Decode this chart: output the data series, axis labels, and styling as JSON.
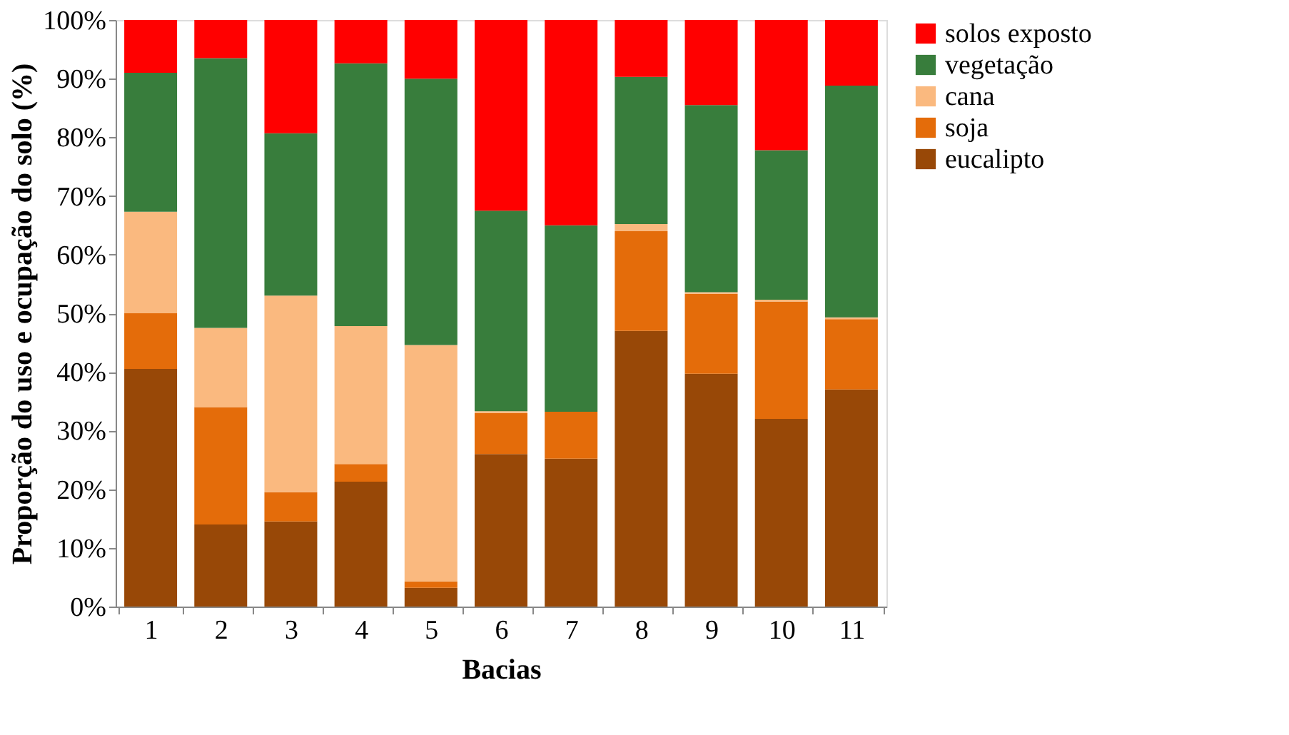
{
  "chart_data": {
    "type": "bar",
    "stacked": true,
    "xlabel": "Bacias",
    "ylabel": "Proporção do uso e ocupação do solo (%)",
    "categories": [
      "1",
      "2",
      "3",
      "4",
      "5",
      "6",
      "7",
      "8",
      "9",
      "10",
      "11"
    ],
    "series": [
      {
        "name": "eucalipto",
        "color": "#984807",
        "values": [
          40.5,
          14,
          14.5,
          21.3,
          3.2,
          26,
          25.2,
          47,
          39.7,
          32,
          37
        ]
      },
      {
        "name": "soja",
        "color": "#e46c0a",
        "values": [
          9.5,
          20,
          5,
          3,
          1.1,
          7,
          8,
          17,
          13.6,
          20,
          12
        ]
      },
      {
        "name": "cana",
        "color": "#fab97f",
        "values": [
          17.3,
          13.5,
          33.5,
          23.5,
          40.3,
          0.3,
          0,
          1.2,
          0.3,
          0.3,
          0.3
        ]
      },
      {
        "name": "vegetação",
        "color": "#387d3c",
        "values": [
          23.7,
          46,
          27.7,
          44.8,
          45.4,
          34.2,
          31.8,
          25.1,
          31.9,
          25.5,
          39.5
        ]
      },
      {
        "name": "solos exposto",
        "color": "#ff0000",
        "values": [
          9,
          6.5,
          19.3,
          7.4,
          10,
          32.5,
          35,
          9.7,
          14.5,
          22.2,
          11.2
        ]
      }
    ],
    "ylim": [
      0,
      100
    ],
    "yticks": [
      {
        "value": 0,
        "label": "0%"
      },
      {
        "value": 10,
        "label": "10%"
      },
      {
        "value": 20,
        "label": "20%"
      },
      {
        "value": 30,
        "label": "30%"
      },
      {
        "value": 40,
        "label": "40%"
      },
      {
        "value": 50,
        "label": "50%"
      },
      {
        "value": 60,
        "label": "60%"
      },
      {
        "value": 70,
        "label": "70%"
      },
      {
        "value": 80,
        "label": "80%"
      },
      {
        "value": 90,
        "label": "90%"
      },
      {
        "value": 100,
        "label": "100%"
      }
    ],
    "grid": false,
    "legend": "right"
  }
}
